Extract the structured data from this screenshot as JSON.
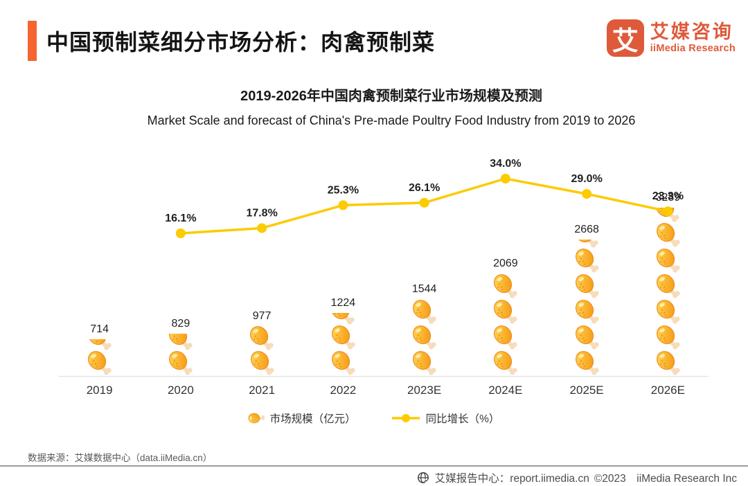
{
  "header": {
    "title": "中国预制菜细分市场分析：肉禽预制菜",
    "accent_color": "#F4652F"
  },
  "logo": {
    "mark_char": "艾",
    "cn": "艾媒咨询",
    "en": "iiMedia Research",
    "color": "#DE5A3B"
  },
  "chart": {
    "title_cn": "2019-2026年中国肉禽预制菜行业市场规模及预测",
    "title_en": "Market Scale and forecast of China's Pre-made Poultry Food Industry from 2019 to 2026"
  },
  "chart_data": {
    "type": "combo",
    "categories": [
      "2019",
      "2020",
      "2021",
      "2022",
      "2023E",
      "2024E",
      "2025E",
      "2026E"
    ],
    "series": [
      {
        "name": "市场规模（亿元）",
        "type": "pictorial-bar",
        "icon": "drumstick",
        "unit_per_icon": 500,
        "values": [
          714,
          829,
          977,
          1224,
          1544,
          2069,
          2668,
          3289
        ]
      },
      {
        "name": "同比增长（%）",
        "type": "line",
        "color": "#FCCB00",
        "values": [
          null,
          16.1,
          17.8,
          25.3,
          26.1,
          34.0,
          29.0,
          23.3
        ],
        "labels": [
          "",
          "16.1%",
          "17.8%",
          "25.3%",
          "26.1%",
          "34.0%",
          "29.0%",
          "23.3%"
        ]
      }
    ],
    "legend_position": "bottom-center",
    "grid": false,
    "bar_value_labels_shown": true,
    "line_value_labels_shown": true
  },
  "legend": {
    "bar_label": "市场规模（亿元）",
    "line_label": "同比增长（%）"
  },
  "source": {
    "text": "数据来源：艾媒数据中心（data.iiMedia.cn）"
  },
  "footer": {
    "site": "艾媒报告中心：report.iimedia.cn",
    "copyright": "©2023　iiMedia Research Inc"
  }
}
